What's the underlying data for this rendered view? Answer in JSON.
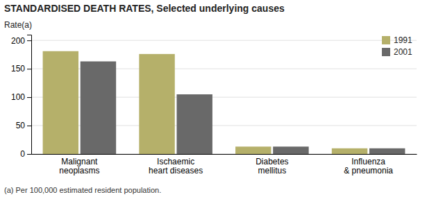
{
  "chart_data": {
    "type": "bar",
    "title": "STANDARDISED DEATH RATES, Selected underlying causes",
    "ylabel": "Rate(a)",
    "annotations": [
      "(a) Per 100,000 estimated resident population."
    ],
    "categories": [
      "Malignant\nneoplasms",
      "Ischaemic\nheart diseases",
      "Diabetes\nmellitus",
      "Influenza\n& pneumonia"
    ],
    "series": [
      {
        "name": "1991",
        "color": "#b5b06a",
        "values": [
          181,
          176,
          13,
          10
        ]
      },
      {
        "name": "2001",
        "color": "#696969",
        "values": [
          163,
          105,
          13,
          10
        ]
      }
    ],
    "ylim": [
      0,
      210
    ],
    "yticks": [
      0,
      50,
      100,
      150,
      200
    ],
    "grid": true,
    "legend": "upper right"
  }
}
